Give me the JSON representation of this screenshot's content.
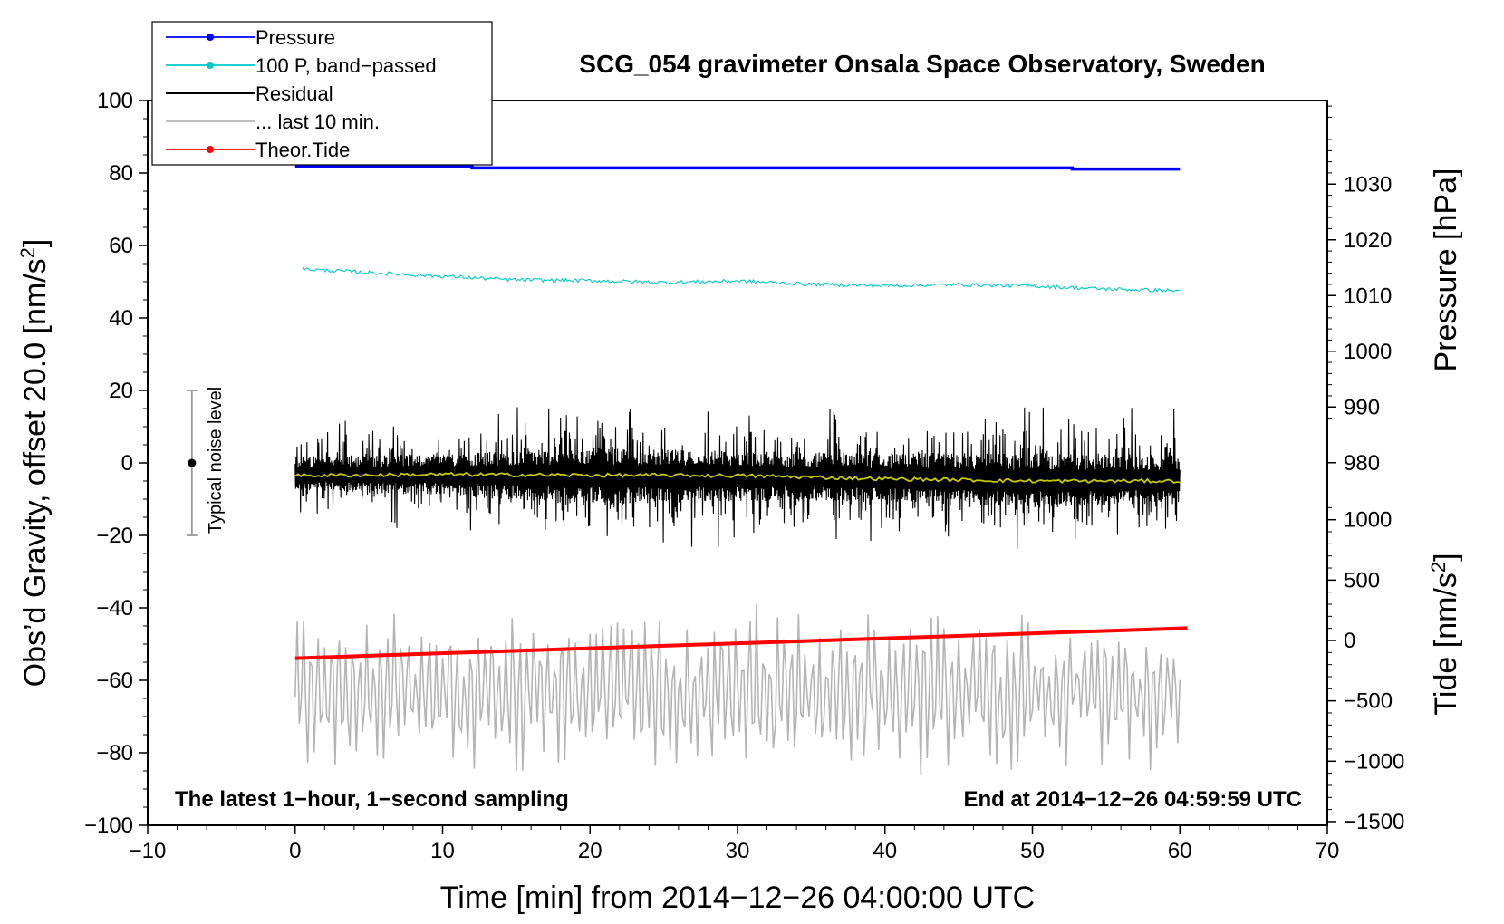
{
  "chart_data": {
    "type": "line",
    "title": "SCG_054 gravimeter Onsala Space Observatory, Sweden",
    "xlabel": "Time [min] from 2014−12−26 04:00:00 UTC",
    "ylabel": "Obs’d Gravity, offset 20.0 [nm/s",
    "ylabel_sup": "2",
    "ylabel_end": "]",
    "xlim": [
      -10,
      70
    ],
    "ylim": [
      -100,
      100
    ],
    "x_ticks": [
      "−10",
      "0",
      "10",
      "20",
      "30",
      "40",
      "50",
      "60",
      "70"
    ],
    "y_ticks": [
      "100",
      "80",
      "60",
      "40",
      "20",
      "0",
      "−20",
      "−40",
      "−60",
      "−80",
      "−100"
    ],
    "right_axis_pressure": {
      "label": "Pressure [hPa]",
      "ticks": [
        "1030",
        "1020",
        "1010",
        "1000",
        "990",
        "980"
      ]
    },
    "right_axis_tide": {
      "label": "Tide [nm/s",
      "label_sup": "2",
      "label_end": "]",
      "ticks": [
        "1000",
        "500",
        "0",
        "−500",
        "−1000",
        "−1500"
      ]
    },
    "legend": [
      {
        "label": "Pressure",
        "color": "#0000ff",
        "marker": true
      },
      {
        "label": "100 P, band−passed",
        "color": "#00c8c8",
        "marker": true
      },
      {
        "label": "Residual",
        "color": "#000000",
        "marker": false
      },
      {
        "label": "... last 10 min.",
        "color": "#b4b4b4",
        "marker": false
      },
      {
        "label": "Theor.Tide",
        "color": "#ff0000",
        "marker": true
      }
    ],
    "annotations": {
      "left": "The latest 1−hour, 1−second sampling",
      "right": "End at 2014−12−26 04:59:59 UTC",
      "noise": "Typical noise level"
    },
    "noise_bar": {
      "x": -7,
      "center": 0,
      "low": -20,
      "high": 20
    },
    "series": [
      {
        "name": "Pressure",
        "color": "#0000ff",
        "x": [
          0,
          12,
          12,
          52.7,
          52.7,
          60
        ],
        "y": [
          81.7,
          81.7,
          81.4,
          81.4,
          81.1,
          81.1
        ]
      },
      {
        "name": "100 P, band-passed",
        "color": "#00c8c8",
        "x": [
          0.5,
          5,
          10,
          15,
          20,
          25,
          30,
          35,
          40,
          45,
          50,
          55,
          60
        ],
        "y": [
          53.5,
          52.5,
          51.5,
          50.5,
          50.3,
          49.8,
          50.2,
          49.3,
          48.9,
          49.2,
          48.8,
          48.0,
          47.5
        ]
      },
      {
        "name": "Residual envelope",
        "color": "#000000",
        "x": [
          0,
          10,
          20,
          30,
          40,
          50,
          60
        ],
        "y_high": [
          12,
          13,
          18,
          16,
          16,
          17,
          16
        ],
        "y_low": [
          -15,
          -20,
          -27,
          -24,
          -22,
          -26,
          -22
        ]
      },
      {
        "name": "Residual trend",
        "color": "#c8c800",
        "x": [
          0,
          10,
          20,
          30,
          40,
          50,
          60
        ],
        "y": [
          -3.5,
          -3.2,
          -3.4,
          -3.5,
          -4.4,
          -5.0,
          -5.0
        ]
      },
      {
        "name": "... last 10 min.",
        "color": "#b4b4b4",
        "x": [
          0,
          60
        ],
        "y_center": -63,
        "y_range": [
          -87,
          -39
        ]
      },
      {
        "name": "Theor.Tide",
        "color": "#ff0000",
        "x": [
          0,
          60.5
        ],
        "y": [
          -53.9,
          -45.6
        ]
      }
    ]
  }
}
